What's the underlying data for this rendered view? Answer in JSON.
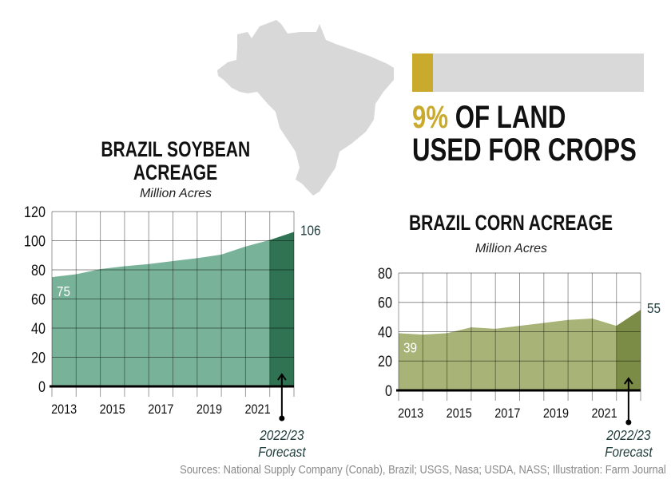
{
  "map": {
    "icon": "brazil-map-silhouette",
    "color": "#d8d8d8"
  },
  "land_stat": {
    "percent": 9,
    "percent_label": "9%",
    "line1_rest": "OF LAND",
    "line2": "USED FOR CROPS",
    "fill_color": "#c9aa2c",
    "track_color": "#d9d9d9"
  },
  "sources": "Sources: National Supply Company (Conab), Brazil; USGS, Nasa; USDA, NASS; Illustration: Farm Journal",
  "chart_data": [
    {
      "type": "area",
      "title_line1": "BRAZIL SOYBEAN",
      "title_line2": "ACREAGE",
      "ylabel": "Million Acres",
      "ylim": [
        0,
        120
      ],
      "yticks": [
        0,
        20,
        40,
        60,
        80,
        100,
        120
      ],
      "xtick_labels": [
        "2013",
        "2015",
        "2017",
        "2019",
        "2021"
      ],
      "values": [
        75,
        77,
        80.5,
        82.5,
        84,
        86,
        88,
        90.5,
        96,
        100.5,
        106
      ],
      "forecast_segments": 1,
      "start_label": "75",
      "end_label": "106",
      "forecast_label_1": "2022/23",
      "forecast_label_2": "Forecast",
      "grid": true,
      "fill_color": "#78b399",
      "forecast_color": "#2f7352"
    },
    {
      "type": "area",
      "title_line1": "BRAZIL CORN ACREAGE",
      "ylabel": "Million Acres",
      "ylim": [
        0,
        80
      ],
      "yticks": [
        0,
        20,
        40,
        60,
        80
      ],
      "xtick_labels": [
        "2013",
        "2015",
        "2017",
        "2019",
        "2021"
      ],
      "values": [
        39,
        38,
        39,
        43,
        42,
        44,
        46,
        48,
        49,
        44,
        55
      ],
      "forecast_segments": 1,
      "start_label": "39",
      "end_label": "55",
      "forecast_label_1": "2022/23",
      "forecast_label_2": "Forecast",
      "grid": true,
      "fill_color": "#a8b377",
      "forecast_color": "#7a8c45"
    }
  ]
}
